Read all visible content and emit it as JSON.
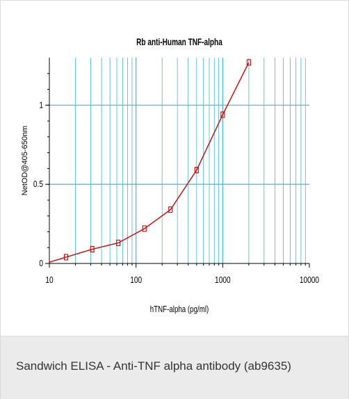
{
  "caption": "Sandwich ELISA - Anti-TNF alpha antibody (ab9635)",
  "chart_data": {
    "type": "scatter",
    "title": "Rb anti-Human TNF-alpha",
    "xlabel": "hTNF-alpha (pg/ml)",
    "ylabel": "NetOD@405-650nm",
    "x_scale": "log",
    "xlim": [
      10,
      10000
    ],
    "ylim": [
      0,
      1.3
    ],
    "x_ticks": [
      "10",
      "100",
      "1000",
      "10000"
    ],
    "y_ticks": [
      "0",
      "0.5",
      "1"
    ],
    "y_tick_values": [
      0,
      0.5,
      1
    ],
    "grid": true,
    "colors": {
      "grid": "#3fb6d6",
      "series": "#cc0000",
      "axis": "#000000"
    },
    "series": [
      {
        "x": [
          15.6,
          31.25,
          62.5,
          125,
          250,
          500,
          1000,
          2000
        ],
        "values": [
          0.04,
          0.09,
          0.13,
          0.22,
          0.34,
          0.59,
          0.94,
          1.27
        ]
      }
    ]
  }
}
